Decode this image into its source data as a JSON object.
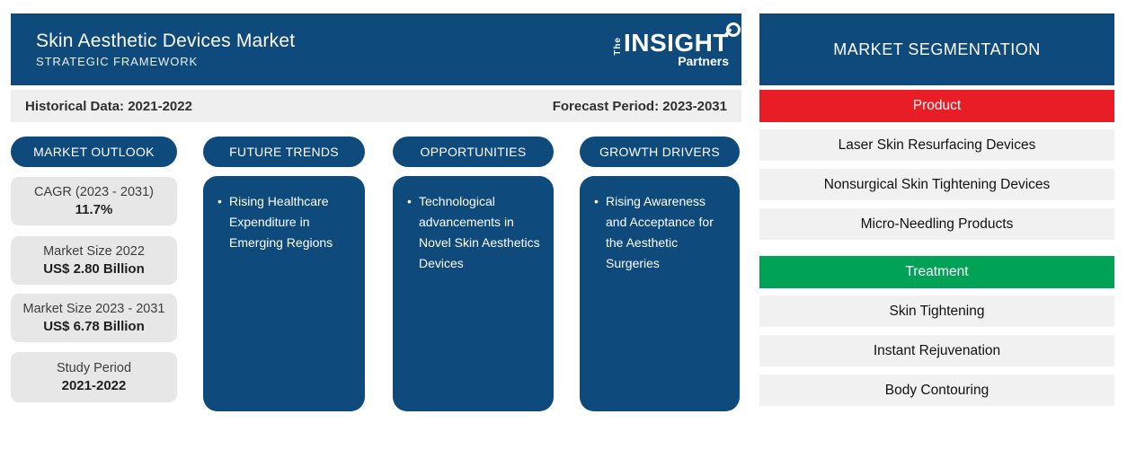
{
  "header": {
    "title": "Skin Aesthetic Devices Market",
    "subtitle": "STRATEGIC FRAMEWORK",
    "logo": {
      "the": "The",
      "insight": "INSIGHT",
      "partners": "Partners"
    }
  },
  "period_bar": {
    "historical": "Historical Data: 2021-2022",
    "forecast": "Forecast Period: 2023-2031"
  },
  "market_outlook": {
    "label": "MARKET OUTLOOK",
    "stats": [
      {
        "label": "CAGR (2023 - 2031)",
        "value": "11.7%"
      },
      {
        "label": "Market Size 2022",
        "value": "US$ 2.80 Billion"
      },
      {
        "label": "Market Size 2023 - 2031",
        "value": "US$ 6.78 Billion"
      },
      {
        "label": "Study Period",
        "value": "2021-2022"
      }
    ]
  },
  "columns": [
    {
      "label": "FUTURE TRENDS",
      "bullet": "Rising Healthcare Expenditure in Emerging Regions"
    },
    {
      "label": "OPPORTUNITIES",
      "bullet": "Technological advancements in Novel Skin Aesthetics Devices"
    },
    {
      "label": "GROWTH DRIVERS",
      "bullet": "Rising Awareness and Acceptance for the Aesthetic Surgeries"
    }
  ],
  "segmentation": {
    "title": "MARKET SEGMENTATION",
    "groups": [
      {
        "label": "Product",
        "color": "#e91d26",
        "items": [
          "Laser Skin Resurfacing Devices",
          "Nonsurgical Skin Tightening Devices",
          "Micro-Needling Products"
        ]
      },
      {
        "label": "Treatment",
        "color": "#00a355",
        "items": [
          "Skin Tightening",
          "Instant Rejuvenation",
          "Body Contouring"
        ]
      }
    ]
  },
  "colors": {
    "primary_blue": "#0e4a7c",
    "product_red": "#e91d26",
    "treatment_green": "#00a355",
    "stat_box_gray": "#e7e7e7",
    "bar_gray": "#efefef"
  }
}
